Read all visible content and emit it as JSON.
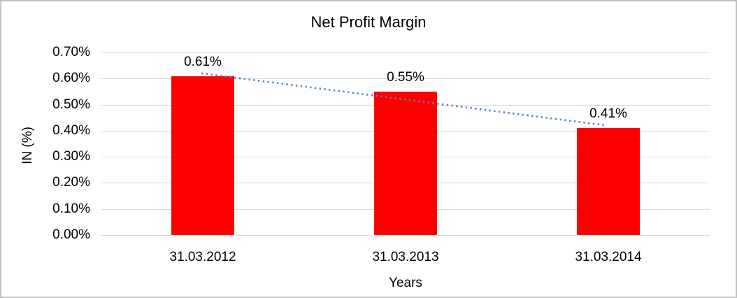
{
  "chart_data": {
    "type": "bar",
    "title": "Net Profit Margin",
    "xlabel": "Years",
    "ylabel": "IN (%)",
    "categories": [
      "31.03.2012",
      "31.03.2013",
      "31.03.2014"
    ],
    "values": [
      0.61,
      0.55,
      0.41
    ],
    "data_labels": [
      "0.61%",
      "0.55%",
      "0.41%"
    ],
    "ylim": [
      0,
      0.7
    ],
    "ytick_step": 0.1,
    "ytick_labels": [
      "0.70%",
      "0.60%",
      "0.50%",
      "0.40%",
      "0.30%",
      "0.20%",
      "0.10%",
      "0.00%"
    ],
    "grid": true,
    "legend_position": "none",
    "bar_color": "#ff0000",
    "gridline_color": "#d9d9d9",
    "text_color": "#000000",
    "trendline": {
      "type": "linear",
      "style": "dotted",
      "color": "#4e86c8",
      "start_value": 0.62,
      "end_value": 0.42
    }
  }
}
